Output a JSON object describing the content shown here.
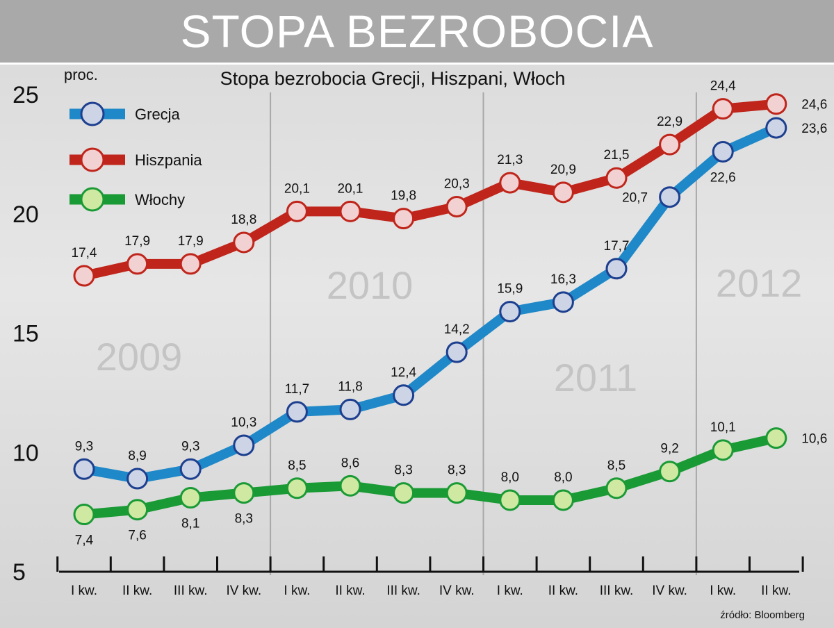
{
  "banner": {
    "title": "STOPA BEZROBOCIA"
  },
  "chart_data": {
    "type": "line",
    "title": "Stopa bezrobocia Grecji, Hiszpani, Włoch",
    "ylabel": "proc.",
    "ylim": [
      5,
      25
    ],
    "yticks": [
      "5",
      "10",
      "15",
      "20",
      "25"
    ],
    "categories": [
      "I kw.",
      "II kw.",
      "III kw.",
      "IV kw.",
      "I kw.",
      "II kw.",
      "III kw.",
      "IV kw.",
      "I kw.",
      "II kw.",
      "III kw.",
      "IV kw.",
      "I kw.",
      "II kw."
    ],
    "years": [
      "2009",
      "2010",
      "2011",
      "2012"
    ],
    "source": "źródło: Bloomberg",
    "grid": false,
    "legend": "top-left",
    "series": [
      {
        "name": "Grecja",
        "color": "#1f88c8",
        "marker_fill": "#ccd4e6",
        "marker_stroke": "#1d3f8f",
        "values": [
          9.3,
          8.9,
          9.3,
          10.3,
          11.7,
          11.8,
          12.4,
          14.2,
          15.9,
          16.3,
          17.7,
          20.7,
          22.6,
          23.6
        ],
        "labels": [
          "9,3",
          "8,9",
          "9,3",
          "10,3",
          "11,7",
          "11,8",
          "12,4",
          "14,2",
          "15,9",
          "16,3",
          "17,7",
          "20,7",
          "22,6",
          "23,6"
        ]
      },
      {
        "name": "Hiszpania",
        "color": "#c0251b",
        "marker_fill": "#f1d1d1",
        "marker_stroke": "#c0251b",
        "values": [
          17.4,
          17.9,
          17.9,
          18.8,
          20.1,
          20.1,
          19.8,
          20.3,
          21.3,
          20.9,
          21.5,
          22.9,
          24.4,
          24.6
        ],
        "labels": [
          "17,4",
          "17,9",
          "17,9",
          "18,8",
          "20,1",
          "20,1",
          "19,8",
          "20,3",
          "21,3",
          "20,9",
          "21,5",
          "22,9",
          "24,4",
          "24,6"
        ]
      },
      {
        "name": "Włochy",
        "color": "#1a9a35",
        "marker_fill": "#cfe9a3",
        "marker_stroke": "#1a9a35",
        "values": [
          7.4,
          7.6,
          8.1,
          8.3,
          8.5,
          8.6,
          8.3,
          8.3,
          8.0,
          8.0,
          8.5,
          9.2,
          10.1,
          10.6
        ],
        "labels": [
          "7,4",
          "7,6",
          "8,1",
          "8,3",
          "8,5",
          "8,6",
          "8,3",
          "8,3",
          "8,0",
          "8,0",
          "8,5",
          "9,2",
          "10,1",
          "10,6"
        ]
      }
    ]
  }
}
